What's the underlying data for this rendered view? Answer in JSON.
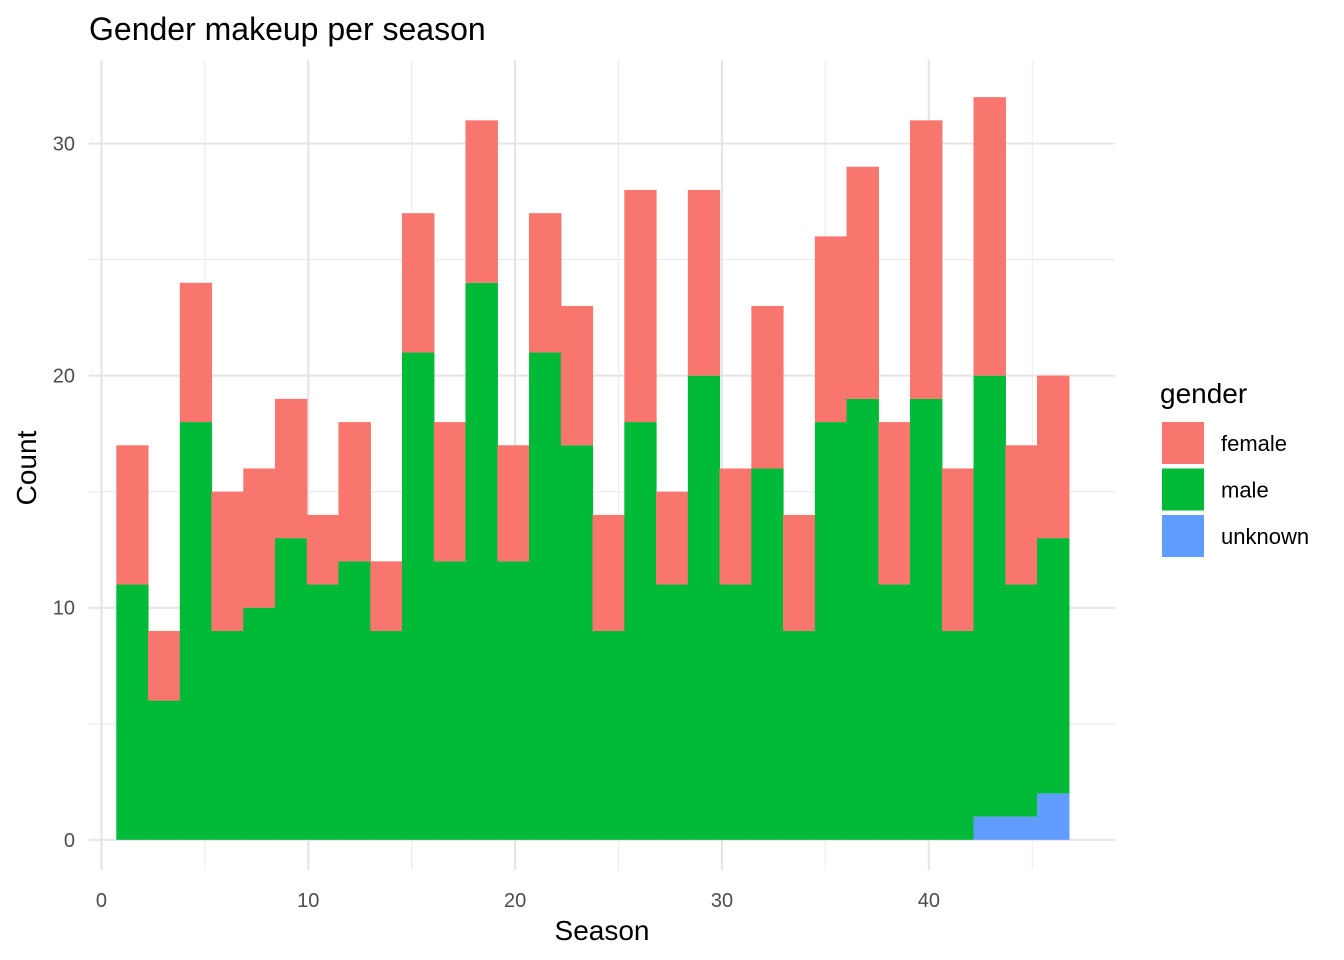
{
  "chart_data": {
    "type": "bar",
    "stacked": true,
    "title": "Gender makeup per season",
    "xlabel": "Season",
    "ylabel": "Count",
    "xlim": [
      -0.6,
      49
    ],
    "ylim": [
      -1.3,
      33.6
    ],
    "x_ticks": [
      0,
      10,
      20,
      30,
      40
    ],
    "y_ticks": [
      0,
      10,
      20,
      30
    ],
    "grid": true,
    "legend": {
      "title": "gender",
      "position": "right",
      "entries": [
        "female",
        "male",
        "unknown"
      ]
    },
    "bins": [
      {
        "x0": 0.72,
        "x1": 2.25
      },
      {
        "x0": 2.25,
        "x1": 3.79
      },
      {
        "x0": 3.79,
        "x1": 5.32
      },
      {
        "x0": 5.32,
        "x1": 6.86
      },
      {
        "x0": 6.86,
        "x1": 8.39
      },
      {
        "x0": 8.39,
        "x1": 9.93
      },
      {
        "x0": 9.93,
        "x1": 11.46
      },
      {
        "x0": 11.46,
        "x1": 13.0
      },
      {
        "x0": 13.0,
        "x1": 14.53
      },
      {
        "x0": 14.53,
        "x1": 16.07
      },
      {
        "x0": 16.07,
        "x1": 17.6
      },
      {
        "x0": 17.6,
        "x1": 19.14
      },
      {
        "x0": 19.14,
        "x1": 20.67
      },
      {
        "x0": 20.67,
        "x1": 22.21
      },
      {
        "x0": 22.21,
        "x1": 23.74
      },
      {
        "x0": 23.74,
        "x1": 25.28
      },
      {
        "x0": 25.28,
        "x1": 26.81
      },
      {
        "x0": 26.81,
        "x1": 28.35
      },
      {
        "x0": 28.35,
        "x1": 29.88
      },
      {
        "x0": 29.88,
        "x1": 31.42
      },
      {
        "x0": 31.42,
        "x1": 32.95
      },
      {
        "x0": 32.95,
        "x1": 34.49
      },
      {
        "x0": 34.49,
        "x1": 36.02
      },
      {
        "x0": 36.02,
        "x1": 37.56
      },
      {
        "x0": 37.56,
        "x1": 39.09
      },
      {
        "x0": 39.09,
        "x1": 40.63
      },
      {
        "x0": 40.63,
        "x1": 42.16
      },
      {
        "x0": 42.16,
        "x1": 43.7
      },
      {
        "x0": 43.7,
        "x1": 45.23
      },
      {
        "x0": 45.23,
        "x1": 46.77
      }
    ],
    "series": [
      {
        "name": "unknown",
        "color": "#619CFF",
        "values": [
          0,
          0,
          0,
          0,
          0,
          0,
          0,
          0,
          0,
          0,
          0,
          0,
          0,
          0,
          0,
          0,
          0,
          0,
          0,
          0,
          0,
          0,
          0,
          0,
          0,
          0,
          0,
          1,
          1,
          2
        ]
      },
      {
        "name": "male",
        "color": "#00BA38",
        "values": [
          11,
          6,
          18,
          9,
          10,
          13,
          11,
          12,
          9,
          21,
          12,
          24,
          12,
          21,
          17,
          9,
          18,
          11,
          20,
          11,
          16,
          9,
          18,
          19,
          11,
          19,
          9,
          19,
          10,
          11
        ]
      },
      {
        "name": "female",
        "color": "#F8766D",
        "values": [
          6,
          3,
          6,
          6,
          6,
          6,
          3,
          6,
          3,
          6,
          6,
          7,
          5,
          6,
          6,
          5,
          10,
          4,
          8,
          5,
          7,
          5,
          8,
          10,
          7,
          12,
          7,
          12,
          6,
          7
        ]
      }
    ]
  }
}
